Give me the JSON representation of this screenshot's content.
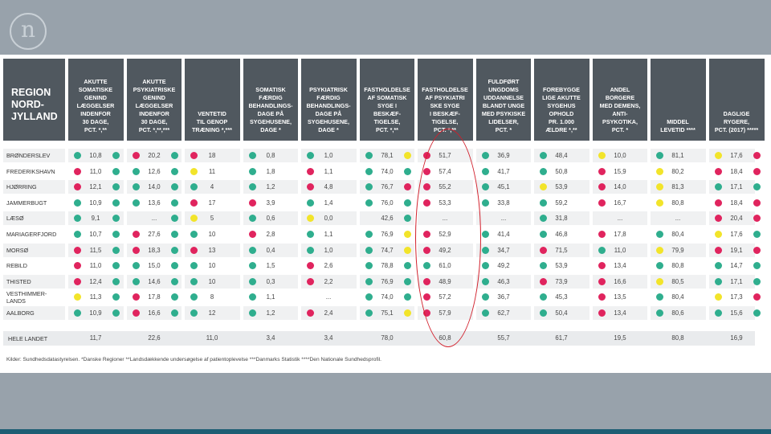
{
  "logo": "n",
  "colors": {
    "green": "#2fae8e",
    "red": "#e0245e",
    "yellow": "#f2e42a",
    "header_bg": "#50585f",
    "highlight": "#d21f2b"
  },
  "header": {
    "region": "REGION\nNORD-\nJYLLAND",
    "columns": [
      "AKUTTE\nSOMATISKE\nGENIND\nLÆGGELSER\nINDENFOR\n30 DAGE,\nPCT. *,**",
      "AKUTTE\nPSYKIATRISKE\nGENIND\nLÆGGELSER\nINDENFOR\n30 DAGE,\nPCT. *,**,***",
      "VENTETID\nTIL GENOP\nTRÆNING *,***",
      "SOMATISK\nFÆRDIG\nBEHANDLINGS-\nDAGE PÅ\nSYGEHUSENE,\nDAGE *",
      "PSYKIATRISK\nFÆRDIG\nBEHANDLINGS-\nDAGE PÅ\nSYGEHUSENE,\nDAGE *",
      "FASTHOLDELSE\nAF SOMATISK\nSYGE I\nBESKÆF-\nTIGELSE,\nPCT. *,**",
      "FASTHOLDELSE\nAF PSYKIATRI\nSKE SYGE\nI BESKÆF-\nTIGELSE,\nPCT. *,**",
      "FULDFØRT\nUNGDOMS\nUDDANNELSE\nBLANDT UNGE\nMED PSYKISKE\nLIDELSER,\nPCT. *",
      "FOREBYGGE\nLIGE AKUTTE\nSYGEHUS\nOPHOLD\nPR. 1.000\nÆLDRE *,**",
      "ANDEL\nBORGERE\nMED DEMENS,\nANTI-\nPSYKOTIKA,\nPCT. *",
      "MIDDEL\nLEVETID ****",
      "DAGLIGE\nRYGERE,\nPCT. (2017) *****"
    ]
  },
  "rows": [
    {
      "name": "BRØNDERSLEV",
      "cells": [
        [
          "10,8",
          "g",
          "g"
        ],
        [
          "20,2",
          "r",
          "g"
        ],
        [
          "18",
          "r"
        ],
        [
          "0,8",
          "g"
        ],
        [
          "1,0",
          "g"
        ],
        [
          "78,1",
          "g",
          "y"
        ],
        [
          "51,7",
          "r"
        ],
        [
          "36,9",
          "g"
        ],
        [
          "48,4",
          "g"
        ],
        [
          "10,0",
          "y"
        ],
        [
          "81,1",
          "g"
        ],
        [
          "17,6",
          "y",
          "r"
        ]
      ]
    },
    {
      "name": "FREDERIKSHAVN",
      "cells": [
        [
          "11,0",
          "r",
          "g"
        ],
        [
          "12,6",
          "g",
          "g"
        ],
        [
          "11",
          "y"
        ],
        [
          "1,8",
          "g"
        ],
        [
          "1,1",
          "r"
        ],
        [
          "74,0",
          "g",
          "g"
        ],
        [
          "57,4",
          "r"
        ],
        [
          "41,7",
          "g"
        ],
        [
          "50,8",
          "g"
        ],
        [
          "15,9",
          "r"
        ],
        [
          "80,2",
          "y"
        ],
        [
          "18,4",
          "r",
          "r"
        ]
      ]
    },
    {
      "name": "HJØRRING",
      "cells": [
        [
          "12,1",
          "r",
          "g"
        ],
        [
          "14,0",
          "g",
          "g"
        ],
        [
          "4",
          "g"
        ],
        [
          "1,2",
          "g"
        ],
        [
          "4,8",
          "r"
        ],
        [
          "76,7",
          "g",
          "r"
        ],
        [
          "55,2",
          "r"
        ],
        [
          "45,1",
          "g"
        ],
        [
          "53,9",
          "y"
        ],
        [
          "14,0",
          "r"
        ],
        [
          "81,3",
          "y"
        ],
        [
          "17,1",
          "g",
          "g"
        ]
      ]
    },
    {
      "name": "JAMMERBUGT",
      "cells": [
        [
          "10,9",
          "g",
          "g"
        ],
        [
          "13,6",
          "g",
          "g"
        ],
        [
          "17",
          "r"
        ],
        [
          "3,9",
          "r"
        ],
        [
          "1,4",
          "g"
        ],
        [
          "76,0",
          "g",
          "g"
        ],
        [
          "53,3",
          "r"
        ],
        [
          "33,8",
          "g"
        ],
        [
          "59,2",
          "g"
        ],
        [
          "16,7",
          "r"
        ],
        [
          "80,8",
          "y"
        ],
        [
          "18,4",
          "r",
          "r"
        ]
      ]
    },
    {
      "name": "LÆSØ",
      "cells": [
        [
          "9,1",
          "g",
          "g"
        ],
        [
          "...",
          "none",
          "g"
        ],
        [
          "5",
          "y"
        ],
        [
          "0,6",
          "g"
        ],
        [
          "0,0",
          "y"
        ],
        [
          "42,6",
          "none",
          "g"
        ],
        [
          "...",
          "none"
        ],
        [
          "...",
          "none"
        ],
        [
          "31,8",
          "g"
        ],
        [
          "...",
          "none"
        ],
        [
          "...",
          "none"
        ],
        [
          "20,4",
          "r",
          "r"
        ]
      ]
    },
    {
      "name": "MARIAGERFJORD",
      "cells": [
        [
          "10,7",
          "g",
          "g"
        ],
        [
          "27,6",
          "r",
          "g"
        ],
        [
          "10",
          "g"
        ],
        [
          "2,8",
          "r"
        ],
        [
          "1,1",
          "g"
        ],
        [
          "76,9",
          "g",
          "y"
        ],
        [
          "52,9",
          "r"
        ],
        [
          "41,4",
          "g"
        ],
        [
          "46,8",
          "g"
        ],
        [
          "17,8",
          "r"
        ],
        [
          "80,4",
          "g"
        ],
        [
          "17,6",
          "y",
          "g"
        ]
      ]
    },
    {
      "name": "MORSØ",
      "cells": [
        [
          "11,5",
          "r",
          "g"
        ],
        [
          "18,3",
          "r",
          "g"
        ],
        [
          "13",
          "r"
        ],
        [
          "0,4",
          "g"
        ],
        [
          "1,0",
          "g"
        ],
        [
          "74,7",
          "g",
          "y"
        ],
        [
          "49,2",
          "r"
        ],
        [
          "34,7",
          "g"
        ],
        [
          "71,5",
          "r"
        ],
        [
          "11,0",
          "g"
        ],
        [
          "79,9",
          "y"
        ],
        [
          "19,1",
          "r",
          "r"
        ]
      ]
    },
    {
      "name": "REBILD",
      "cells": [
        [
          "11,0",
          "r",
          "g"
        ],
        [
          "15,0",
          "g",
          "g"
        ],
        [
          "10",
          "g"
        ],
        [
          "1,5",
          "g"
        ],
        [
          "2,6",
          "r"
        ],
        [
          "78,8",
          "g",
          "g"
        ],
        [
          "61,0",
          "g"
        ],
        [
          "49,2",
          "g"
        ],
        [
          "53,9",
          "g"
        ],
        [
          "13,4",
          "r"
        ],
        [
          "80,8",
          "g"
        ],
        [
          "14,7",
          "g",
          "g"
        ]
      ]
    },
    {
      "name": "THISTED",
      "cells": [
        [
          "12,4",
          "r",
          "g"
        ],
        [
          "14,6",
          "g",
          "g"
        ],
        [
          "10",
          "g"
        ],
        [
          "0,3",
          "g"
        ],
        [
          "2,2",
          "r"
        ],
        [
          "76,9",
          "g",
          "g"
        ],
        [
          "48,9",
          "r"
        ],
        [
          "46,3",
          "g"
        ],
        [
          "73,9",
          "r"
        ],
        [
          "16,6",
          "r"
        ],
        [
          "80,5",
          "y"
        ],
        [
          "17,1",
          "g",
          "g"
        ]
      ]
    },
    {
      "name": "VESTHIMMER-\nLANDS",
      "cells": [
        [
          "11,3",
          "y",
          "g"
        ],
        [
          "17,8",
          "r",
          "g"
        ],
        [
          "8",
          "g"
        ],
        [
          "1,1",
          "g"
        ],
        [
          "...",
          "none"
        ],
        [
          "74,0",
          "g",
          "g"
        ],
        [
          "57,2",
          "r"
        ],
        [
          "36,7",
          "g"
        ],
        [
          "45,3",
          "g"
        ],
        [
          "13,5",
          "r"
        ],
        [
          "80,4",
          "g"
        ],
        [
          "17,3",
          "y",
          "r"
        ]
      ]
    },
    {
      "name": "AALBORG",
      "cells": [
        [
          "10,9",
          "g",
          "g"
        ],
        [
          "16,6",
          "r",
          "g"
        ],
        [
          "12",
          "g"
        ],
        [
          "1,2",
          "g"
        ],
        [
          "2,4",
          "r"
        ],
        [
          "75,1",
          "g",
          "y"
        ],
        [
          "57,9",
          "r"
        ],
        [
          "62,7",
          "g"
        ],
        [
          "50,4",
          "g"
        ],
        [
          "13,4",
          "r"
        ],
        [
          "80,6",
          "g"
        ],
        [
          "15,6",
          "g",
          "g"
        ]
      ]
    }
  ],
  "total": {
    "label": "HELE LANDET",
    "values": [
      "11,7",
      "22,6",
      "11,0",
      "3,4",
      "3,4",
      "78,0",
      "60,8",
      "55,7",
      "61,7",
      "19,5",
      "80,8",
      "16,9"
    ]
  },
  "source": "Kilder: Sundhedsdatastyrelsen. *Danske Regioner **Landsdækkende undersøgelse af patientoplevelse ***Danmarks Statistik ****Den Nationale Sundhedsprofil."
}
